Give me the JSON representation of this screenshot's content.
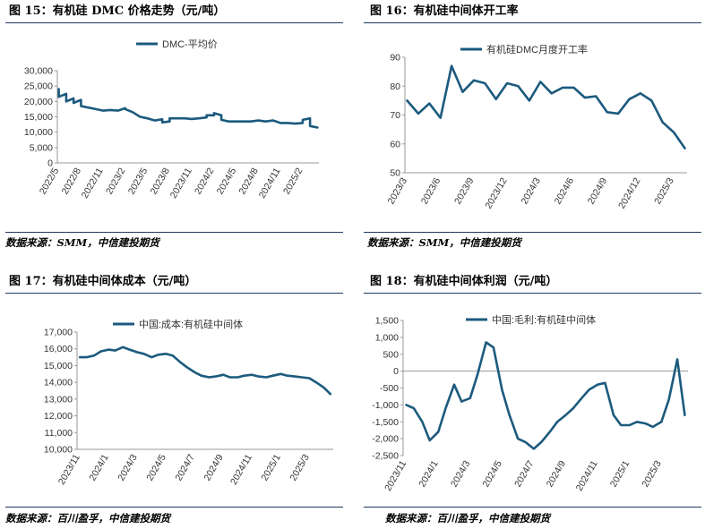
{
  "panels": [
    {
      "heading": "图 15：有机硅 DMC 价格走势（元/吨）",
      "source": "数据来源：SMM，中信建投期货"
    },
    {
      "heading": "图 16：有机硅中间体开工率",
      "source": "数据来源：SMM，中信建投期货"
    },
    {
      "heading": "图 17：有机硅中间体成本（元/吨）",
      "source": "数据来源：百川盈孚，中信建投期货"
    },
    {
      "heading": "图 18：有机硅中间体利润（元/吨）",
      "source": "数据来源：百川盈孚，中信建投期货"
    }
  ],
  "colors": {
    "line": "#1c5a7e",
    "rule": "#1f3a5c"
  },
  "chart_data": [
    {
      "type": "line",
      "title": "",
      "xlabel": "",
      "ylabel": "",
      "series": [
        {
          "name": "DMC-平均价",
          "x": [
            "2022-05",
            "2022-05",
            "2022-06",
            "2022-06",
            "2022-07",
            "2022-07",
            "2022-08",
            "2022-08",
            "2022-09",
            "2022-10",
            "2022-11",
            "2022-11",
            "2022-12",
            "2023-01",
            "2023-02",
            "2023-02",
            "2023-03",
            "2023-04",
            "2023-05",
            "2023-06",
            "2023-07",
            "2023-07",
            "2023-08",
            "2023-08",
            "2023-09",
            "2023-10",
            "2023-11",
            "2023-12",
            "2024-01",
            "2024-01",
            "2024-02",
            "2024-02",
            "2024-03",
            "2024-03",
            "2024-04",
            "2024-05",
            "2024-06",
            "2024-07",
            "2024-08",
            "2024-09",
            "2024-10",
            "2024-11",
            "2024-12",
            "2025-01",
            "2025-02",
            "2025-02",
            "2025-03",
            "2025-03",
            "2025-04"
          ],
          "values": [
            24000,
            21500,
            22500,
            20000,
            21000,
            19500,
            20500,
            18500,
            18000,
            17500,
            17000,
            17000,
            17200,
            17000,
            17800,
            17500,
            16500,
            15000,
            14500,
            13800,
            14200,
            13200,
            13500,
            14500,
            14500,
            14500,
            14300,
            14500,
            14800,
            15500,
            15500,
            16200,
            15500,
            14000,
            13500,
            13500,
            13500,
            13500,
            13800,
            13500,
            13800,
            13000,
            13000,
            12800,
            13000,
            14000,
            14500,
            12000,
            11500
          ]
        }
      ],
      "ylim": [
        0,
        30000
      ],
      "yticks": [
        "0",
        "5,000",
        "10,000",
        "15,000",
        "20,000",
        "25,000",
        "30,000"
      ],
      "xticks": [
        "2022/5",
        "2022/8",
        "2022/11",
        "2023/2",
        "2023/5",
        "2023/8",
        "2023/11",
        "2024/2",
        "2024/5",
        "2024/8",
        "2024/11",
        "2025/2"
      ],
      "legend": "top-center"
    },
    {
      "type": "line",
      "title": "",
      "xlabel": "",
      "ylabel": "",
      "series": [
        {
          "name": "有机硅DMC月度开工率",
          "x": [
            "2023-03",
            "2023-04",
            "2023-05",
            "2023-06",
            "2023-07",
            "2023-08",
            "2023-09",
            "2023-10",
            "2023-11",
            "2023-12",
            "2024-01",
            "2024-02",
            "2024-03",
            "2024-04",
            "2024-05",
            "2024-06",
            "2024-07",
            "2024-08",
            "2024-09",
            "2024-10",
            "2024-11",
            "2024-12",
            "2025-01",
            "2025-02",
            "2025-03",
            "2025-04"
          ],
          "values": [
            75,
            70.5,
            74,
            69,
            87,
            78,
            82,
            81,
            75.5,
            81,
            80,
            75,
            81.5,
            77.5,
            79.5,
            79.5,
            76,
            76.5,
            71,
            70.5,
            75.5,
            77.5,
            75,
            67.5,
            64,
            58.5
          ]
        }
      ],
      "ylim": [
        50,
        90
      ],
      "yticks": [
        "50",
        "60",
        "70",
        "80",
        "90"
      ],
      "xticks": [
        "2023/3",
        "2023/6",
        "2023/9",
        "2023/12",
        "2024/3",
        "2024/6",
        "2024/9",
        "2024/12",
        "2025/3"
      ],
      "legend": "top-center"
    },
    {
      "type": "line",
      "title": "",
      "xlabel": "",
      "ylabel": "",
      "series": [
        {
          "name": "中国:成本:有机硅中间体",
          "x": [
            "2023-11-01",
            "2023-11-15",
            "2023-12-01",
            "2023-12-15",
            "2024-01-01",
            "2024-01-15",
            "2024-02-01",
            "2024-02-15",
            "2024-03-01",
            "2024-03-15",
            "2024-04-01",
            "2024-04-15",
            "2024-05-01",
            "2024-05-15",
            "2024-06-01",
            "2024-06-15",
            "2024-07-01",
            "2024-07-15",
            "2024-08-01",
            "2024-08-15",
            "2024-09-01",
            "2024-09-15",
            "2024-10-01",
            "2024-10-15",
            "2024-11-01",
            "2024-11-15",
            "2024-12-01",
            "2024-12-15",
            "2025-01-01",
            "2025-01-15",
            "2025-02-01",
            "2025-02-15",
            "2025-03-01",
            "2025-03-15",
            "2025-04-01",
            "2025-04-15"
          ],
          "values": [
            15500,
            15500,
            15600,
            15850,
            15950,
            15900,
            16100,
            15950,
            15800,
            15700,
            15500,
            15650,
            15700,
            15600,
            15200,
            14900,
            14600,
            14400,
            14300,
            14350,
            14450,
            14300,
            14300,
            14400,
            14450,
            14350,
            14300,
            14400,
            14500,
            14400,
            14350,
            14300,
            14250,
            14000,
            13700,
            13300
          ]
        }
      ],
      "ylim": [
        10000,
        17000
      ],
      "yticks": [
        "10,000",
        "11,000",
        "12,000",
        "13,000",
        "14,000",
        "15,000",
        "16,000",
        "17,000"
      ],
      "xticks": [
        "2023/11",
        "2024/1",
        "2024/3",
        "2024/5",
        "2024/7",
        "2024/9",
        "2024/11",
        "2025/1",
        "2025/3"
      ],
      "legend": "top-center"
    },
    {
      "type": "line",
      "title": "",
      "xlabel": "",
      "ylabel": "",
      "series": [
        {
          "name": "中国:毛利:有机硅中间体",
          "x": [
            "2023-11-01",
            "2023-11-15",
            "2023-12-01",
            "2023-12-15",
            "2024-01-01",
            "2024-01-15",
            "2024-02-01",
            "2024-02-15",
            "2024-03-01",
            "2024-03-15",
            "2024-04-01",
            "2024-04-15",
            "2024-05-01",
            "2024-05-15",
            "2024-06-01",
            "2024-06-15",
            "2024-07-01",
            "2024-07-15",
            "2024-08-01",
            "2024-08-15",
            "2024-09-01",
            "2024-09-15",
            "2024-10-01",
            "2024-10-15",
            "2024-11-01",
            "2024-11-15",
            "2024-12-01",
            "2024-12-15",
            "2025-01-01",
            "2025-01-15",
            "2025-02-01",
            "2025-02-15",
            "2025-03-01",
            "2025-03-15",
            "2025-04-01",
            "2025-04-15"
          ],
          "values": [
            -1000,
            -1100,
            -1500,
            -2050,
            -1800,
            -1100,
            -400,
            -900,
            -800,
            -100,
            850,
            700,
            -550,
            -1300,
            -2000,
            -2100,
            -2300,
            -2100,
            -1800,
            -1500,
            -1300,
            -1100,
            -800,
            -550,
            -400,
            -350,
            -1300,
            -1600,
            -1600,
            -1500,
            -1550,
            -1650,
            -1500,
            -850,
            350,
            -1300
          ]
        }
      ],
      "ylim": [
        -2500,
        1500
      ],
      "yticks": [
        "-2,500",
        "-2,000",
        "-1,500",
        "-1,000",
        "-500",
        "0",
        "500",
        "1,000",
        "1,500"
      ],
      "xticks": [
        "2023/11",
        "2024/1",
        "2024/3",
        "2024/5",
        "2024/7",
        "2024/9",
        "2024/11",
        "2025/1",
        "2025/3"
      ],
      "legend": "top-center"
    }
  ]
}
